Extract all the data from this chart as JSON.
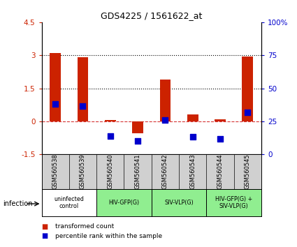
{
  "title": "GDS4225 / 1561622_at",
  "samples": [
    "GSM560538",
    "GSM560539",
    "GSM560540",
    "GSM560541",
    "GSM560542",
    "GSM560543",
    "GSM560544",
    "GSM560545"
  ],
  "transformed_counts": [
    3.1,
    2.9,
    0.05,
    -0.55,
    1.9,
    0.3,
    0.1,
    2.95
  ],
  "groups": [
    {
      "label": "uninfected\ncontrol",
      "start": 0,
      "end": 2,
      "color": "#ffffff"
    },
    {
      "label": "HIV-GFP(G)",
      "start": 2,
      "end": 4,
      "color": "#90ee90"
    },
    {
      "label": "SIV-VLP(G)",
      "start": 4,
      "end": 6,
      "color": "#90ee90"
    },
    {
      "label": "HIV-GFP(G) +\nSIV-VLP(G)",
      "start": 6,
      "end": 8,
      "color": "#90ee90"
    }
  ],
  "ylim_left": [
    -1.5,
    4.5
  ],
  "ylim_right": [
    0,
    100
  ],
  "yticks_left": [
    -1.5,
    0,
    1.5,
    3.0,
    4.5
  ],
  "ytick_labels_left": [
    "-1.5",
    "0",
    "1.5",
    "3",
    "4.5"
  ],
  "yticks_right": [
    0,
    25,
    50,
    75,
    100
  ],
  "ytick_labels_right": [
    "0",
    "25",
    "50",
    "75",
    "100%"
  ],
  "hlines": [
    1.5,
    3.0
  ],
  "bar_color": "#cc2200",
  "dot_color": "#0000cc",
  "bar_width": 0.4,
  "dot_size": 30,
  "legend_red_label": "transformed count",
  "legend_blue_label": "percentile rank within the sample",
  "infection_label": "infection",
  "bg_color": "#d0d0d0",
  "dot_y_left_coords": [
    0.78,
    0.68,
    -0.68,
    -0.9,
    0.05,
    -0.7,
    -0.78,
    0.4
  ]
}
